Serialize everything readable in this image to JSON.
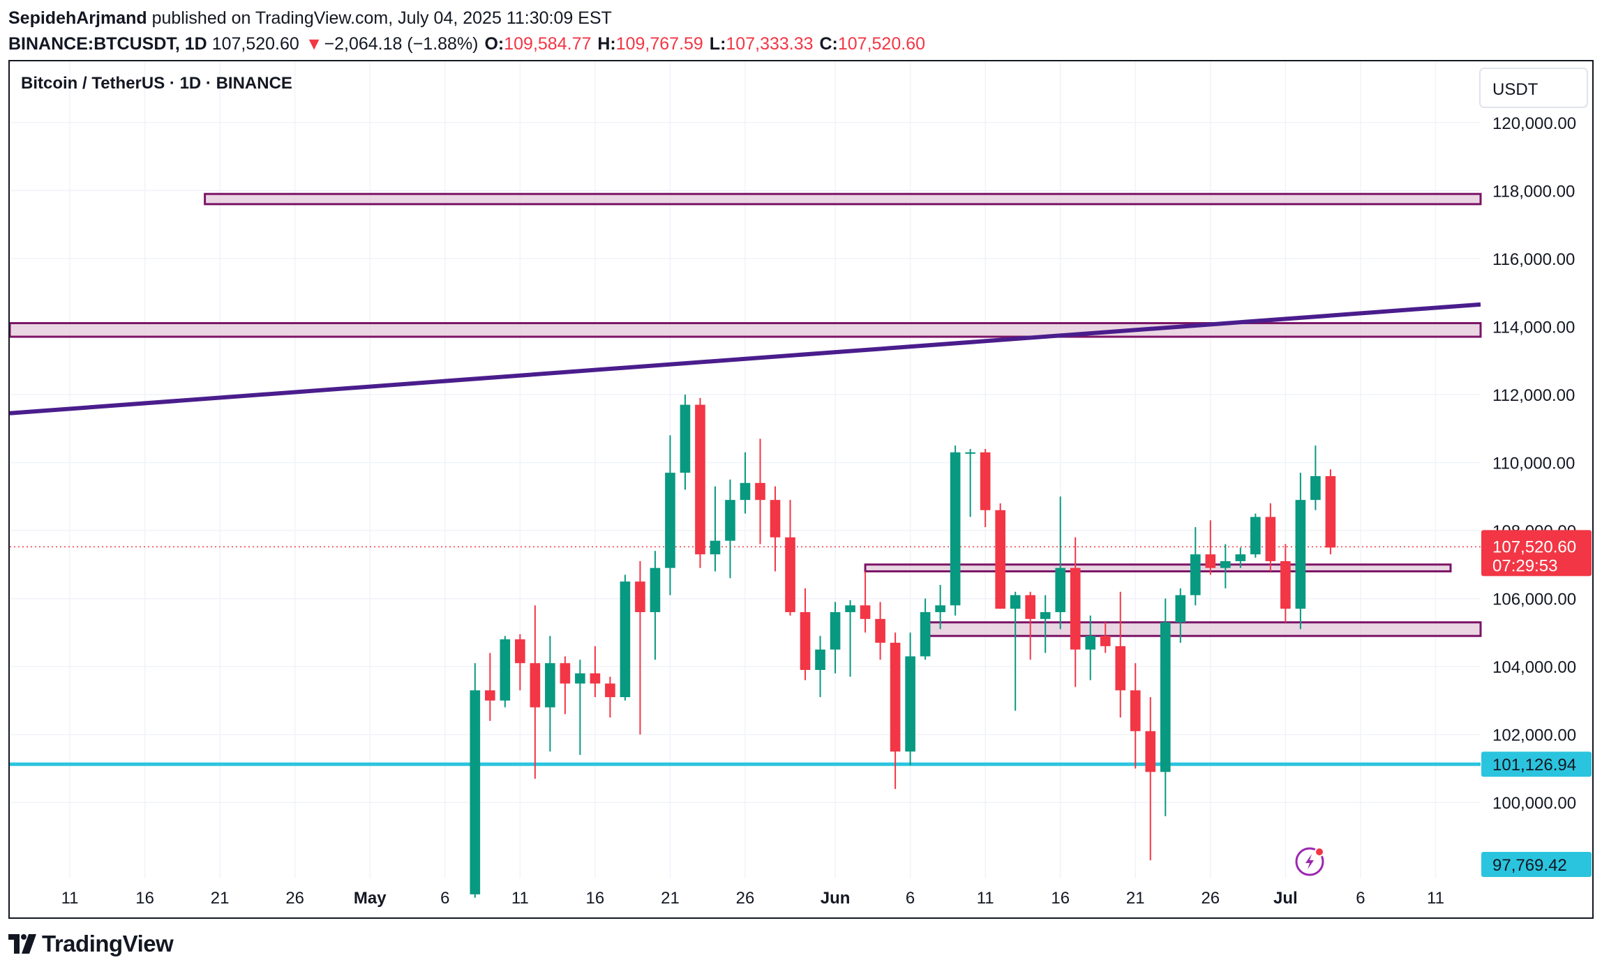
{
  "header": {
    "author": "SepidehArjmand",
    "published_text": "published on TradingView.com, July 04, 2025 11:30:09 EST",
    "symbol": "BINANCE:BTCUSDT, 1D",
    "last": "107,520.60",
    "change_arrow": "▼",
    "change": "−2,064.18 (−1.88%)",
    "o_label": "O:",
    "o_value": "109,584.77",
    "h_label": "H:",
    "h_value": "109,767.59",
    "l_label": "L:",
    "l_value": "107,333.33",
    "c_label": "C:",
    "c_value": "107,520.60"
  },
  "footer": {
    "brand": "TradingView"
  },
  "colors": {
    "up": "#089981",
    "down": "#f23645",
    "zone_stroke": "#7b1466",
    "zone_fill": "#e3c9d9",
    "trendline": "#4a1d8c",
    "support": "#2bc4de",
    "grid": "#f0f3fa"
  },
  "chart_data": {
    "type": "candlestick",
    "title": "Bitcoin / TetherUS · 1D · BINANCE",
    "currency": "USDT",
    "y_range": [
      97769.42,
      121800
    ],
    "y_ticks": [
      100000,
      102000,
      104000,
      106000,
      108000,
      110000,
      112000,
      114000,
      116000,
      118000,
      120000
    ],
    "y_tick_labels": [
      "100,000.00",
      "102,000.00",
      "104,000.00",
      "106,000.00",
      "108,000.00",
      "110,000.00",
      "112,000.00",
      "114,000.00",
      "116,000.00",
      "118,000.00",
      "120,000.00"
    ],
    "x_range": [
      "2025-04-07",
      "2025-07-14"
    ],
    "x_ticks": [
      {
        "date": "2025-04-11",
        "label": "11"
      },
      {
        "date": "2025-04-16",
        "label": "16"
      },
      {
        "date": "2025-04-21",
        "label": "21"
      },
      {
        "date": "2025-04-26",
        "label": "26"
      },
      {
        "date": "2025-05-01",
        "label": "May"
      },
      {
        "date": "2025-05-06",
        "label": "6"
      },
      {
        "date": "2025-05-11",
        "label": "11"
      },
      {
        "date": "2025-05-16",
        "label": "16"
      },
      {
        "date": "2025-05-21",
        "label": "21"
      },
      {
        "date": "2025-05-26",
        "label": "26"
      },
      {
        "date": "2025-06-01",
        "label": "Jun"
      },
      {
        "date": "2025-06-06",
        "label": "6"
      },
      {
        "date": "2025-06-11",
        "label": "11"
      },
      {
        "date": "2025-06-16",
        "label": "16"
      },
      {
        "date": "2025-06-21",
        "label": "21"
      },
      {
        "date": "2025-06-26",
        "label": "26"
      },
      {
        "date": "2025-07-01",
        "label": "Jul"
      },
      {
        "date": "2025-07-06",
        "label": "6"
      },
      {
        "date": "2025-07-11",
        "label": "11"
      }
    ],
    "candles": [
      {
        "d": "2025-05-08",
        "o": 97300,
        "h": 104100,
        "l": 97200,
        "c": 103300
      },
      {
        "d": "2025-05-09",
        "o": 103300,
        "h": 104400,
        "l": 102400,
        "c": 103000
      },
      {
        "d": "2025-05-10",
        "o": 103000,
        "h": 104900,
        "l": 102800,
        "c": 104800
      },
      {
        "d": "2025-05-11",
        "o": 104800,
        "h": 104950,
        "l": 103300,
        "c": 104100
      },
      {
        "d": "2025-05-12",
        "o": 104100,
        "h": 105800,
        "l": 100700,
        "c": 102800
      },
      {
        "d": "2025-05-13",
        "o": 102800,
        "h": 104900,
        "l": 101500,
        "c": 104100
      },
      {
        "d": "2025-05-14",
        "o": 104100,
        "h": 104300,
        "l": 102600,
        "c": 103500
      },
      {
        "d": "2025-05-15",
        "o": 103500,
        "h": 104200,
        "l": 101400,
        "c": 103800
      },
      {
        "d": "2025-05-16",
        "o": 103800,
        "h": 104600,
        "l": 103100,
        "c": 103500
      },
      {
        "d": "2025-05-17",
        "o": 103500,
        "h": 103700,
        "l": 102500,
        "c": 103100
      },
      {
        "d": "2025-05-18",
        "o": 103100,
        "h": 106700,
        "l": 103000,
        "c": 106500
      },
      {
        "d": "2025-05-19",
        "o": 106500,
        "h": 107100,
        "l": 102000,
        "c": 105600
      },
      {
        "d": "2025-05-20",
        "o": 105600,
        "h": 107400,
        "l": 104200,
        "c": 106900
      },
      {
        "d": "2025-05-21",
        "o": 106900,
        "h": 110800,
        "l": 106100,
        "c": 109700
      },
      {
        "d": "2025-05-22",
        "o": 109700,
        "h": 112000,
        "l": 109200,
        "c": 111700
      },
      {
        "d": "2025-05-23",
        "o": 111700,
        "h": 111900,
        "l": 106900,
        "c": 107300
      },
      {
        "d": "2025-05-24",
        "o": 107300,
        "h": 109300,
        "l": 106800,
        "c": 107700
      },
      {
        "d": "2025-05-25",
        "o": 107700,
        "h": 109500,
        "l": 106600,
        "c": 108900
      },
      {
        "d": "2025-05-26",
        "o": 108900,
        "h": 110300,
        "l": 108500,
        "c": 109400
      },
      {
        "d": "2025-05-27",
        "o": 109400,
        "h": 110700,
        "l": 107600,
        "c": 108900
      },
      {
        "d": "2025-05-28",
        "o": 108900,
        "h": 109300,
        "l": 106800,
        "c": 107800
      },
      {
        "d": "2025-05-29",
        "o": 107800,
        "h": 108900,
        "l": 105500,
        "c": 105600
      },
      {
        "d": "2025-05-30",
        "o": 105600,
        "h": 106300,
        "l": 103600,
        "c": 103900
      },
      {
        "d": "2025-05-31",
        "o": 103900,
        "h": 104900,
        "l": 103100,
        "c": 104500
      },
      {
        "d": "2025-06-01",
        "o": 104500,
        "h": 105900,
        "l": 103800,
        "c": 105600
      },
      {
        "d": "2025-06-02",
        "o": 105600,
        "h": 105950,
        "l": 103700,
        "c": 105800
      },
      {
        "d": "2025-06-03",
        "o": 105800,
        "h": 106800,
        "l": 105000,
        "c": 105400
      },
      {
        "d": "2025-06-04",
        "o": 105400,
        "h": 105900,
        "l": 104200,
        "c": 104700
      },
      {
        "d": "2025-06-05",
        "o": 104700,
        "h": 105000,
        "l": 100400,
        "c": 101500
      },
      {
        "d": "2025-06-06",
        "o": 101500,
        "h": 105000,
        "l": 101100,
        "c": 104300
      },
      {
        "d": "2025-06-07",
        "o": 104300,
        "h": 106000,
        "l": 104200,
        "c": 105600
      },
      {
        "d": "2025-06-08",
        "o": 105600,
        "h": 106400,
        "l": 105100,
        "c": 105800
      },
      {
        "d": "2025-06-09",
        "o": 105800,
        "h": 110500,
        "l": 105500,
        "c": 110300
      },
      {
        "d": "2025-06-10",
        "o": 110300,
        "h": 110400,
        "l": 108400,
        "c": 110300
      },
      {
        "d": "2025-06-11",
        "o": 110300,
        "h": 110400,
        "l": 108100,
        "c": 108600
      },
      {
        "d": "2025-06-12",
        "o": 108600,
        "h": 108800,
        "l": 105700,
        "c": 105700
      },
      {
        "d": "2025-06-13",
        "o": 105700,
        "h": 106200,
        "l": 102700,
        "c": 106100
      },
      {
        "d": "2025-06-14",
        "o": 106100,
        "h": 106200,
        "l": 104200,
        "c": 105400
      },
      {
        "d": "2025-06-15",
        "o": 105400,
        "h": 106100,
        "l": 104400,
        "c": 105600
      },
      {
        "d": "2025-06-16",
        "o": 105600,
        "h": 109000,
        "l": 105100,
        "c": 106900
      },
      {
        "d": "2025-06-17",
        "o": 106900,
        "h": 107800,
        "l": 103400,
        "c": 104500
      },
      {
        "d": "2025-06-18",
        "o": 104500,
        "h": 105500,
        "l": 103600,
        "c": 104900
      },
      {
        "d": "2025-06-19",
        "o": 104900,
        "h": 105300,
        "l": 104400,
        "c": 104600
      },
      {
        "d": "2025-06-20",
        "o": 104600,
        "h": 106200,
        "l": 102500,
        "c": 103300
      },
      {
        "d": "2025-06-21",
        "o": 103300,
        "h": 104100,
        "l": 101000,
        "c": 102100
      },
      {
        "d": "2025-06-22",
        "o": 102100,
        "h": 103100,
        "l": 98300,
        "c": 100900
      },
      {
        "d": "2025-06-23",
        "o": 100900,
        "h": 106000,
        "l": 99600,
        "c": 105300
      },
      {
        "d": "2025-06-24",
        "o": 105300,
        "h": 106300,
        "l": 104700,
        "c": 106100
      },
      {
        "d": "2025-06-25",
        "o": 106100,
        "h": 108100,
        "l": 105800,
        "c": 107300
      },
      {
        "d": "2025-06-26",
        "o": 107300,
        "h": 108300,
        "l": 106700,
        "c": 106900
      },
      {
        "d": "2025-06-27",
        "o": 106900,
        "h": 107600,
        "l": 106300,
        "c": 107100
      },
      {
        "d": "2025-06-28",
        "o": 107100,
        "h": 107500,
        "l": 106900,
        "c": 107300
      },
      {
        "d": "2025-06-29",
        "o": 107300,
        "h": 108500,
        "l": 107200,
        "c": 108400
      },
      {
        "d": "2025-06-30",
        "o": 108400,
        "h": 108800,
        "l": 106800,
        "c": 107100
      },
      {
        "d": "2025-07-01",
        "o": 107100,
        "h": 107600,
        "l": 105300,
        "c": 105700
      },
      {
        "d": "2025-07-02",
        "o": 105700,
        "h": 109700,
        "l": 105100,
        "c": 108900
      },
      {
        "d": "2025-07-03",
        "o": 108900,
        "h": 110500,
        "l": 108600,
        "c": 109600
      },
      {
        "d": "2025-07-04",
        "o": 109600,
        "h": 109800,
        "l": 107300,
        "c": 107500
      }
    ],
    "zones": [
      {
        "name": "zone-118k",
        "from": "2025-04-20",
        "to": "2025-07-14",
        "y_low": 117600,
        "y_high": 117900
      },
      {
        "name": "zone-114k",
        "from": "2025-04-07",
        "to": "2025-07-14",
        "y_low": 113700,
        "y_high": 114100
      },
      {
        "name": "zone-107k",
        "from": "2025-06-03",
        "to": "2025-07-12",
        "y_low": 106800,
        "y_high": 107000
      },
      {
        "name": "zone-105k",
        "from": "2025-06-07",
        "to": "2025-07-14",
        "y_low": 104900,
        "y_high": 105300
      }
    ],
    "trendline": {
      "from": {
        "date": "2025-04-07",
        "y": 111450
      },
      "to": {
        "date": "2025-07-14",
        "y": 114650
      }
    },
    "support_line": {
      "y": 101126.94,
      "label": "101,126.94"
    },
    "last_price": {
      "value": 107520.6,
      "label": "107,520.60",
      "countdown": "07:29:53"
    },
    "bottom_marker": {
      "value": 97769.42,
      "label": "97,769.42"
    }
  }
}
